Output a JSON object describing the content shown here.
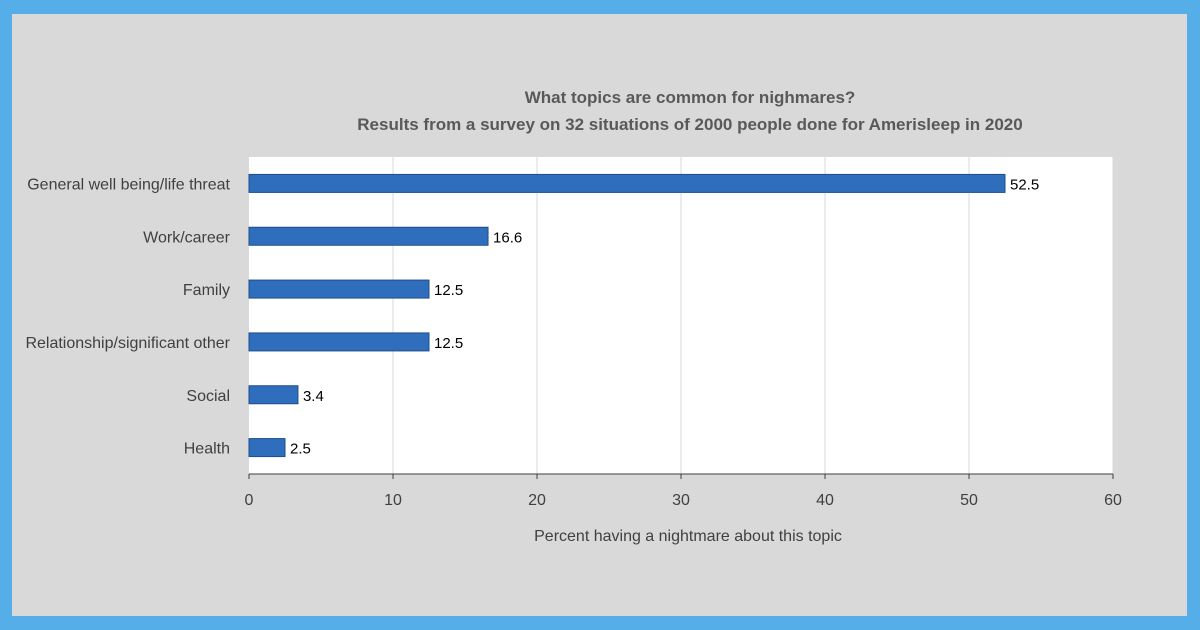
{
  "chart_data": {
    "type": "bar",
    "orientation": "horizontal",
    "title": "What topics are common for nighmares?",
    "subtitle": "Results from a survey on 32 situations of 2000 people done for Amerisleep in 2020",
    "categories": [
      "General well being/life threat",
      "Work/career",
      "Family",
      "Relationship/significant other",
      "Social",
      "Health"
    ],
    "values": [
      52.5,
      16.6,
      12.5,
      12.5,
      3.4,
      2.5
    ],
    "data_labels": [
      "52.5",
      "16.6",
      "12.5",
      "12.5",
      "3.4",
      "2.5"
    ],
    "xlabel": "Percent having a nightmare about this topic",
    "ylabel": "",
    "xlim": [
      0,
      60
    ],
    "xticks": [
      0,
      10,
      20,
      30,
      40,
      50,
      60
    ],
    "grid": true,
    "legend": "none",
    "colors": {
      "bar": "#2e6ebd",
      "bar_edge": "#1f4e8c",
      "plot_background": "#ffffff",
      "chart_background": "#d9d9d9",
      "frame": "#55aee8",
      "gridline": "#d9d9d9"
    }
  }
}
